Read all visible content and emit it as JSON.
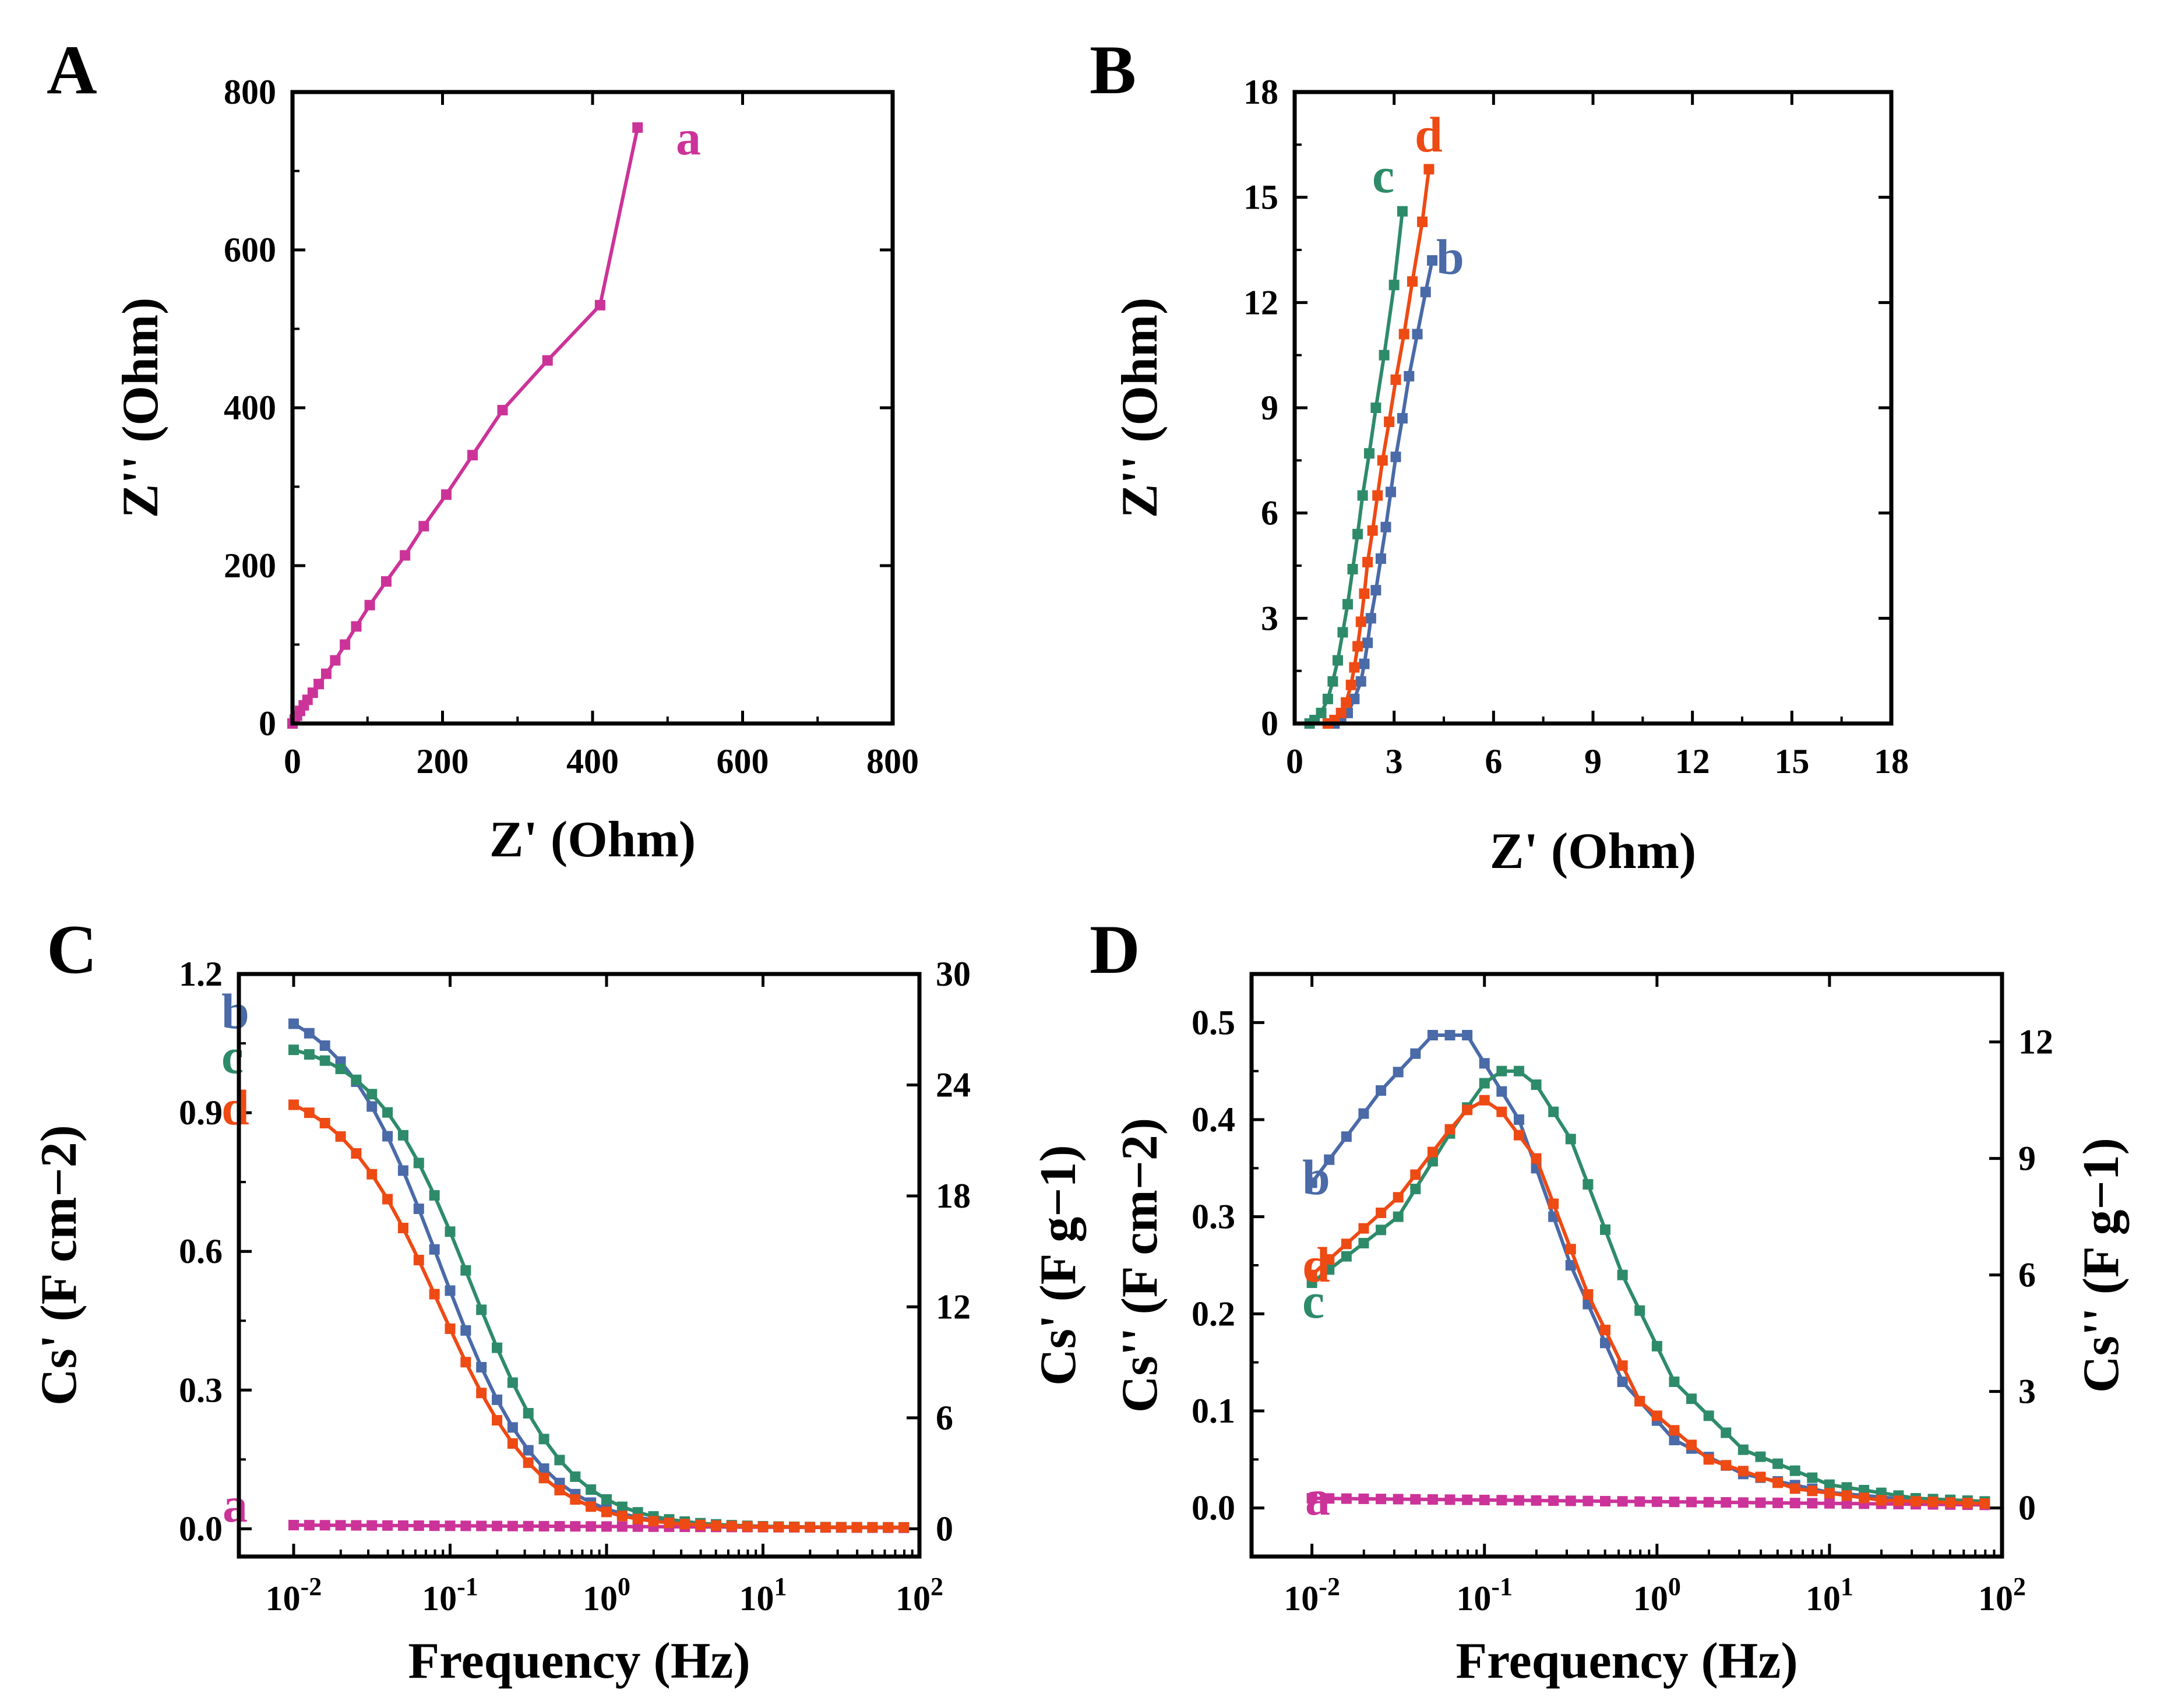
{
  "colors": {
    "a": "#cc3399",
    "b": "#4a6aa8",
    "c": "#2e8b6a",
    "d": "#ee4a14"
  },
  "chart_data": [
    {
      "panel": "A",
      "type": "line",
      "xlabel": "Z' (Ohm)",
      "ylabel": "Z'' (Ohm)",
      "xlim": [
        0,
        800
      ],
      "ylim": [
        0,
        800
      ],
      "xticks": [
        0,
        200,
        400,
        600,
        800
      ],
      "yticks": [
        0,
        200,
        400,
        600,
        800
      ],
      "xtick_labels": [
        "0",
        "200",
        "400",
        "600",
        "800"
      ],
      "ytick_labels": [
        "0",
        "200",
        "400",
        "600",
        "800"
      ],
      "series": [
        {
          "name": "a",
          "label": "a",
          "color_key": "a",
          "x": [
            0,
            3,
            6,
            10,
            15,
            20,
            27,
            35,
            45,
            57,
            70,
            85,
            103,
            125,
            150,
            175,
            205,
            240,
            280,
            340,
            410,
            460
          ],
          "y": [
            0,
            5,
            10,
            16,
            23,
            30,
            39,
            50,
            63,
            80,
            100,
            123,
            150,
            180,
            213,
            250,
            290,
            340,
            397,
            460,
            530,
            755
          ]
        }
      ]
    },
    {
      "panel": "B",
      "type": "line",
      "xlabel": "Z' (Ohm)",
      "ylabel": "Z'' (Ohm)",
      "xlim": [
        0,
        18
      ],
      "ylim": [
        0,
        18
      ],
      "xticks": [
        0,
        3,
        6,
        9,
        12,
        15,
        18
      ],
      "yticks": [
        0,
        3,
        6,
        9,
        12,
        15,
        18
      ],
      "xtick_labels": [
        "0",
        "3",
        "6",
        "9",
        "12",
        "15",
        "18"
      ],
      "ytick_labels": [
        "0",
        "3",
        "6",
        "9",
        "12",
        "15",
        "18"
      ],
      "series": [
        {
          "name": "b",
          "label": "b",
          "color_key": "b",
          "x": [
            1.2,
            1.4,
            1.6,
            1.8,
            2.0,
            2.1,
            2.2,
            2.3,
            2.45,
            2.6,
            2.75,
            2.9,
            3.05,
            3.25,
            3.45,
            3.7,
            3.95,
            4.15
          ],
          "y": [
            0.0,
            0.1,
            0.3,
            0.7,
            1.2,
            1.7,
            2.3,
            3.0,
            3.8,
            4.7,
            5.6,
            6.6,
            7.6,
            8.7,
            9.9,
            11.1,
            12.3,
            13.2
          ]
        },
        {
          "name": "c",
          "label": "c",
          "color_key": "c",
          "x": [
            0.45,
            0.6,
            0.8,
            1.0,
            1.15,
            1.3,
            1.45,
            1.6,
            1.75,
            1.9,
            2.05,
            2.25,
            2.45,
            2.7,
            3.0,
            3.25
          ],
          "y": [
            0.0,
            0.1,
            0.3,
            0.7,
            1.2,
            1.8,
            2.6,
            3.4,
            4.4,
            5.4,
            6.5,
            7.7,
            9.0,
            10.5,
            12.5,
            14.6
          ]
        },
        {
          "name": "d",
          "label": "d",
          "color_key": "d",
          "x": [
            1.0,
            1.2,
            1.4,
            1.55,
            1.7,
            1.8,
            1.9,
            2.0,
            2.1,
            2.2,
            2.35,
            2.5,
            2.65,
            2.85,
            3.05,
            3.3,
            3.55,
            3.85,
            4.05
          ],
          "y": [
            0.0,
            0.1,
            0.3,
            0.6,
            1.1,
            1.6,
            2.2,
            2.9,
            3.7,
            4.6,
            5.5,
            6.5,
            7.5,
            8.6,
            9.8,
            11.1,
            12.6,
            14.3,
            15.8
          ]
        }
      ]
    },
    {
      "panel": "C",
      "type": "line",
      "xscale": "log",
      "xlabel": "Frequency (Hz)",
      "ylabel": "Cs' (F cm−2)",
      "y2label": "Cs' (F g−1)",
      "xlim_log10": [
        -2.35,
        2
      ],
      "ylim": [
        -0.06,
        1.2
      ],
      "y2lim": [
        -1.5,
        30
      ],
      "xticks_log10": [
        -2,
        -1,
        0,
        1,
        2
      ],
      "xtick_labels": [
        "10-2",
        "10-1",
        "100",
        "101",
        "102"
      ],
      "yticks": [
        0.0,
        0.3,
        0.6,
        0.9,
        1.2
      ],
      "ytick_labels": [
        "0.0",
        "0.3",
        "0.6",
        "0.9",
        "1.2"
      ],
      "y2ticks": [
        0,
        6,
        12,
        18,
        24,
        30
      ],
      "y2tick_labels": [
        "0",
        "6",
        "12",
        "18",
        "24",
        "30"
      ],
      "series": [
        {
          "name": "a",
          "label": "a",
          "color_key": "a",
          "model": "flat",
          "v0": 0.008,
          "v1": 0.002
        },
        {
          "name": "b",
          "label": "b",
          "color_key": "b",
          "model": "sigmoid",
          "A": 1.15,
          "fc": 0.085,
          "n": 1.35
        },
        {
          "name": "c",
          "label": "c",
          "color_key": "c",
          "model": "sigmoid",
          "A": 1.06,
          "fc": 0.135,
          "n": 1.4
        },
        {
          "name": "d",
          "label": "d",
          "color_key": "d",
          "model": "sigmoid",
          "A": 0.965,
          "fc": 0.085,
          "n": 1.35
        }
      ]
    },
    {
      "panel": "D",
      "type": "line",
      "xscale": "log",
      "xlabel": "Frequency (Hz)",
      "ylabel": "Cs'' (F cm−2)",
      "y2label": "Cs'' (F g−1)",
      "xlim_log10": [
        -2.35,
        2
      ],
      "ylim": [
        -0.05,
        0.55
      ],
      "y2lim": [
        -1.25,
        13.75
      ],
      "xticks_log10": [
        -2,
        -1,
        0,
        1,
        2
      ],
      "xtick_labels": [
        "10-2",
        "10-1",
        "100",
        "101",
        "102"
      ],
      "yticks": [
        0.0,
        0.1,
        0.2,
        0.3,
        0.4,
        0.5
      ],
      "ytick_labels": [
        "0.0",
        "0.1",
        "0.2",
        "0.3",
        "0.4",
        "0.5"
      ],
      "y2ticks": [
        0,
        3,
        6,
        9,
        12
      ],
      "y2tick_labels": [
        "0",
        "3",
        "6",
        "9",
        "12"
      ],
      "series": [
        {
          "name": "a",
          "label": "a",
          "color_key": "a",
          "model": "flat",
          "v0": 0.01,
          "v1": 0.003
        },
        {
          "name": "b",
          "label": "b",
          "color_key": "b",
          "model": "peak",
          "pts": [
            [
              -2,
              0.335
            ],
            [
              -1.6,
              0.43
            ],
            [
              -1.3,
              0.487
            ],
            [
              -1.1,
              0.487
            ],
            [
              -0.8,
              0.4
            ],
            [
              -0.5,
              0.25
            ],
            [
              -0.2,
              0.13
            ],
            [
              0.1,
              0.07
            ],
            [
              0.5,
              0.035
            ],
            [
              1.0,
              0.016
            ],
            [
              1.5,
              0.008
            ],
            [
              2.0,
              0.005
            ]
          ]
        },
        {
          "name": "c",
          "label": "c",
          "color_key": "c",
          "model": "peak",
          "pts": [
            [
              -2,
              0.232
            ],
            [
              -1.5,
              0.3
            ],
            [
              -1.15,
              0.4
            ],
            [
              -0.95,
              0.45
            ],
            [
              -0.75,
              0.45
            ],
            [
              -0.5,
              0.38
            ],
            [
              -0.2,
              0.24
            ],
            [
              0.1,
              0.13
            ],
            [
              0.5,
              0.06
            ],
            [
              1.0,
              0.024
            ],
            [
              1.5,
              0.01
            ],
            [
              2.0,
              0.006
            ]
          ]
        },
        {
          "name": "d",
          "label": "d",
          "color_key": "d",
          "model": "peak",
          "pts": [
            [
              -2,
              0.24
            ],
            [
              -1.5,
              0.32
            ],
            [
              -1.2,
              0.39
            ],
            [
              -1.05,
              0.42
            ],
            [
              -0.95,
              0.42
            ],
            [
              -0.7,
              0.36
            ],
            [
              -0.4,
              0.22
            ],
            [
              -0.1,
              0.11
            ],
            [
              0.3,
              0.05
            ],
            [
              0.8,
              0.02
            ],
            [
              1.3,
              0.008
            ],
            [
              2.0,
              0.004
            ]
          ]
        }
      ]
    }
  ]
}
